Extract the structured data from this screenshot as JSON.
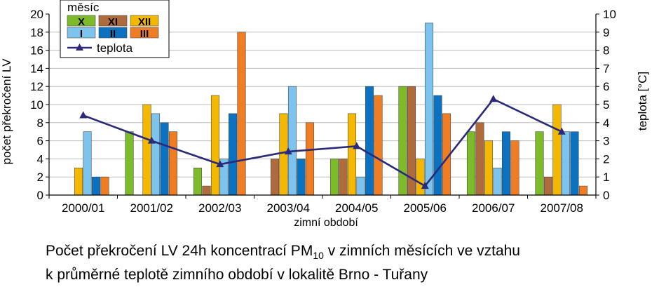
{
  "chart_data": {
    "type": "bar",
    "categories": [
      "2000/01",
      "2001/02",
      "2002/03",
      "2003/04",
      "2004/05",
      "2005/06",
      "2006/07",
      "2007/08"
    ],
    "xlabel": "zimní období",
    "ylabel": "počet překročení LV",
    "y2label": "teplota [°C]",
    "ylim": [
      0,
      20
    ],
    "y2lim": [
      0,
      10
    ],
    "yticks": [
      "0",
      "2",
      "4",
      "6",
      "8",
      "10",
      "12",
      "14",
      "16",
      "18",
      "20"
    ],
    "y2ticks": [
      "0",
      "1",
      "2",
      "3",
      "4",
      "5",
      "6",
      "7",
      "8",
      "9",
      "10"
    ],
    "grid": true,
    "legend_position": "top-left",
    "legend_title": "měsíc",
    "series": [
      {
        "name": "X",
        "color": "#7dbb2a",
        "values": [
          0,
          7,
          3,
          0,
          4,
          12,
          7,
          7
        ]
      },
      {
        "name": "XI",
        "color": "#b06b3c",
        "values": [
          0,
          0,
          1,
          4,
          4,
          12,
          8,
          2
        ]
      },
      {
        "name": "XII",
        "color": "#f5b800",
        "values": [
          3,
          10,
          11,
          9,
          9,
          4,
          6,
          10
        ]
      },
      {
        "name": "I",
        "color": "#7cc3ee",
        "values": [
          7,
          9,
          4,
          12,
          2,
          19,
          3,
          7
        ]
      },
      {
        "name": "II",
        "color": "#0a72c0",
        "values": [
          2,
          8,
          9,
          4,
          12,
          11,
          7,
          7
        ]
      },
      {
        "name": "III",
        "color": "#ef7d23",
        "values": [
          2,
          7,
          18,
          8,
          11,
          9,
          6,
          1
        ]
      }
    ],
    "line_series": {
      "name": "teplota",
      "color": "#2a2a7a",
      "values": [
        4.4,
        3.0,
        1.7,
        2.4,
        2.7,
        0.5,
        5.3,
        3.5
      ]
    }
  },
  "caption": {
    "line1_before": "Počet překročení LV 24h koncentrací PM",
    "line1_sub": "10",
    "line1_after": " v zimních měsících ve vztahu",
    "line2": "k průměrné teplotě zimního období v lokalitě Brno - Tuřany"
  }
}
